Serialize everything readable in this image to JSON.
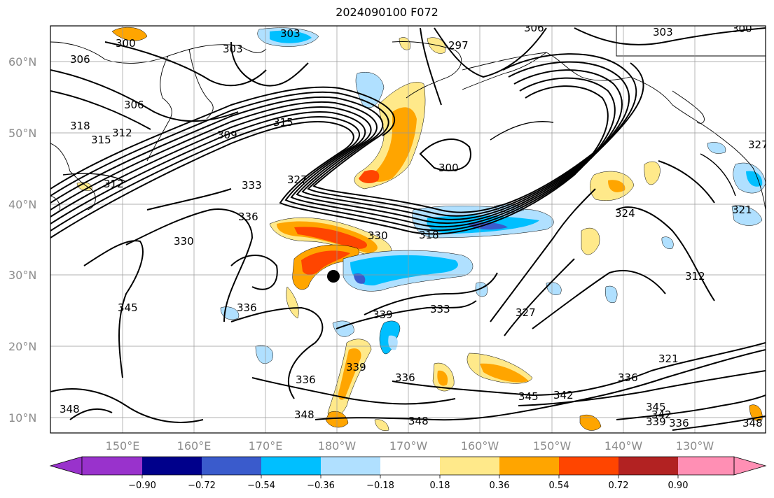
{
  "title": "2024090100 F072",
  "map": {
    "lat_ticks": [
      "60°N",
      "50°N",
      "40°N",
      "30°N",
      "20°N",
      "10°N"
    ],
    "lon_ticks": [
      "150°E",
      "160°E",
      "170°E",
      "180°W",
      "170°W",
      "160°W",
      "150°W",
      "140°W",
      "130°W"
    ],
    "contour_labels": [
      {
        "text": "303"
      },
      {
        "text": "300"
      },
      {
        "text": "306"
      },
      {
        "text": "303"
      },
      {
        "text": "297"
      },
      {
        "text": "306"
      },
      {
        "text": "303"
      },
      {
        "text": "300"
      },
      {
        "text": "306"
      },
      {
        "text": "318"
      },
      {
        "text": "315"
      },
      {
        "text": "312"
      },
      {
        "text": "309"
      },
      {
        "text": "315"
      },
      {
        "text": "312"
      },
      {
        "text": "333"
      },
      {
        "text": "327"
      },
      {
        "text": "300"
      },
      {
        "text": "336"
      },
      {
        "text": "330"
      },
      {
        "text": "330"
      },
      {
        "text": "318"
      },
      {
        "text": "324"
      },
      {
        "text": "321"
      },
      {
        "text": "312"
      },
      {
        "text": "345"
      },
      {
        "text": "336"
      },
      {
        "text": "339"
      },
      {
        "text": "333"
      },
      {
        "text": "327"
      },
      {
        "text": "339"
      },
      {
        "text": "336"
      },
      {
        "text": "336"
      },
      {
        "text": "345"
      },
      {
        "text": "342"
      },
      {
        "text": "336"
      },
      {
        "text": "348"
      },
      {
        "text": "348"
      },
      {
        "text": "348"
      },
      {
        "text": "345"
      },
      {
        "text": "342"
      },
      {
        "text": "339"
      },
      {
        "text": "336"
      },
      {
        "text": "348"
      },
      {
        "text": "321"
      },
      {
        "text": "327"
      }
    ],
    "marker": "storm-center-dot",
    "colors": {
      "contour": "#000000",
      "coastline": "#000000",
      "grid": "#999999"
    }
  },
  "colorbar": {
    "ticks": [
      "−0.90",
      "−0.72",
      "−0.54",
      "−0.36",
      "−0.18",
      "0.18",
      "0.36",
      "0.54",
      "0.72",
      "0.90"
    ],
    "colors": [
      "#9932cc",
      "#00008b",
      "#3a5bcc",
      "#00bfff",
      "#b0e0ff",
      "#ffffff",
      "#ffe98a",
      "#ffa500",
      "#ff4500",
      "#b22222",
      "#ff8fb4"
    ]
  }
}
